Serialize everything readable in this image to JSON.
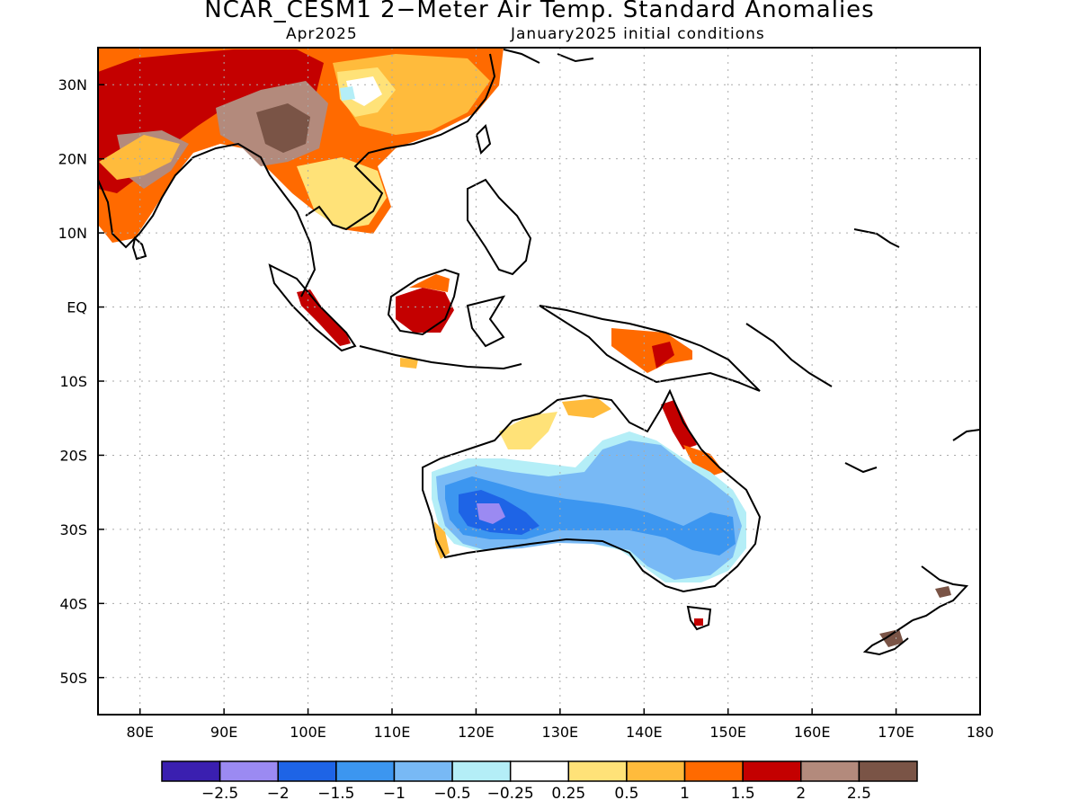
{
  "header": {
    "title": "NCAR_CESM1 2−Meter Air Temp. Standard Anomalies",
    "month": "Apr2025",
    "init": "January2025 initial conditions"
  },
  "map": {
    "lat_labels": [
      "30N",
      "20N",
      "10N",
      "EQ",
      "10S",
      "20S",
      "30S",
      "40S",
      "50S"
    ],
    "lat_values": [
      30,
      20,
      10,
      0,
      -10,
      -20,
      -30,
      -40,
      -50
    ],
    "lon_labels": [
      "80E",
      "90E",
      "100E",
      "110E",
      "120E",
      "130E",
      "140E",
      "150E",
      "160E",
      "170E",
      "180"
    ],
    "lon_values": [
      80,
      90,
      100,
      110,
      120,
      130,
      140,
      150,
      160,
      170,
      180
    ],
    "lon_range": [
      75,
      180
    ],
    "lat_range": [
      -55,
      35
    ],
    "grid": "dotted"
  },
  "colorbar": {
    "colors": [
      "#3a1fb0",
      "#9b8af2",
      "#1e64e6",
      "#3c96f0",
      "#78b9f5",
      "#b4eef7",
      "#ffffff",
      "#ffe278",
      "#ffbb3c",
      "#ff6a00",
      "#c40000",
      "#b38a7c",
      "#7a5446"
    ],
    "labels": [
      "−2.5",
      "−2",
      "−1.5",
      "−1",
      "−0.5",
      "−0.25",
      "0.25",
      "0.5",
      "1",
      "1.5",
      "2",
      "2.5"
    ]
  }
}
